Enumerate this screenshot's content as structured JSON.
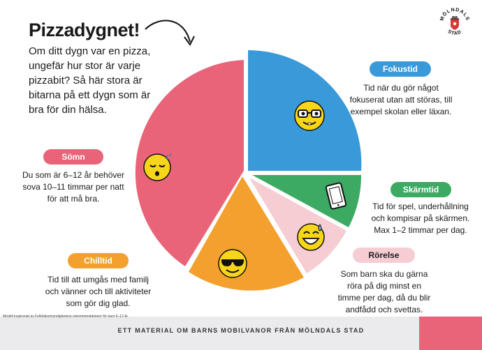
{
  "title": "Pizzadygnet!",
  "intro": "Om ditt dygn var en pizza, ungefär hur stor är varje pizzabit? Så här stora är bitarna på ett dygn som är bra för din hälsa.",
  "logo_text": "MÖLNDALS STAD",
  "sections": {
    "fokustid": {
      "label": "Fokustid",
      "color": "#3a9ad9",
      "text": "Tid när du gör något fokuserat utan att störas, till exempel skolan eller läxan.",
      "icon": "nerd-face-icon"
    },
    "skarmtid": {
      "label": "Skärmtid",
      "color": "#3daa64",
      "text": "Tid för spel, underhållning och kompisar på skärmen. Max 1–2 timmar per dag.",
      "icon": "tablet-icon"
    },
    "rorelse": {
      "label": "Rörelse",
      "color": "#f5cdd3",
      "label_color": "#1a1a1a",
      "text": "Som barn ska du gärna röra på dig minst en timme per dag, då du blir andfådd och svettas.",
      "icon": "sweat-smile-icon"
    },
    "chilltid": {
      "label": "Chilltid",
      "color": "#f3a02e",
      "text": "Tid till att umgås med familj och vänner och till aktiviteter som gör dig glad.",
      "icon": "sunglasses-face-icon"
    },
    "somn": {
      "label": "Sömn",
      "color": "#e96478",
      "text": "Du som är 6–12 år behöver sova 10–11 timmar per natt för att må bra.",
      "icon": "sleeping-face-icon"
    }
  },
  "footer": {
    "source_note": "Modell inspirerad av Folkhälsomyndighetens rekommendationer för barn 6–12 år.",
    "text": "ETT MATERIAL OM BARNS MOBILVANOR FRÅN MÖLNDALS STAD",
    "accent_color": "#e96478"
  }
}
